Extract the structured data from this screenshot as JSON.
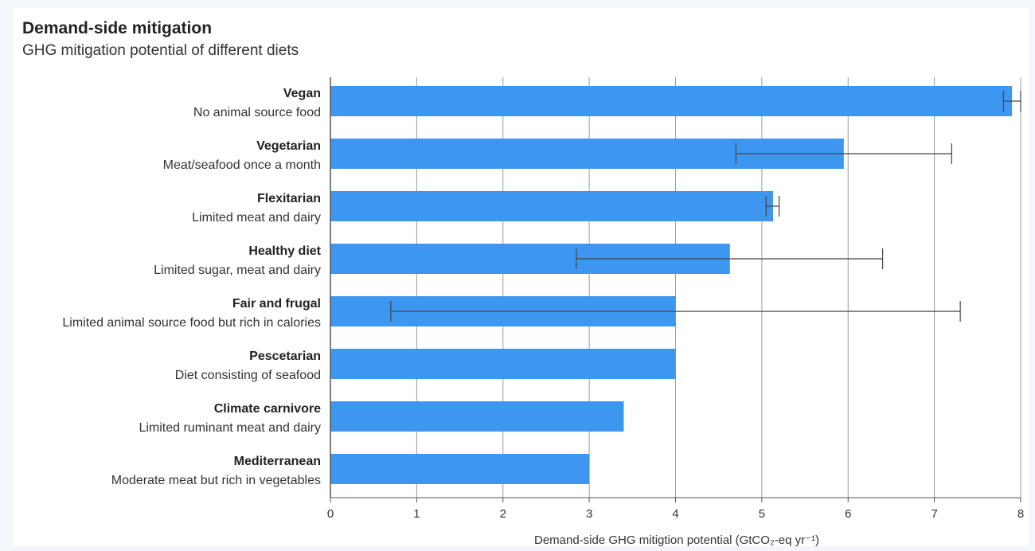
{
  "header": {
    "title": "Demand-side mitigation",
    "subtitle": "GHG mitigation potential of different diets"
  },
  "chart_data": {
    "type": "bar",
    "orientation": "horizontal",
    "title": "Demand-side mitigation",
    "subtitle": "GHG mitigation potential of different diets",
    "xlabel": "Demand-side GHG mitigtion potential (GtCO₂-eq yr⁻¹)",
    "ylabel": "",
    "xlim": [
      0,
      8
    ],
    "xticks": [
      0,
      1,
      2,
      3,
      4,
      5,
      6,
      7,
      8
    ],
    "grid": "vertical",
    "bar_color": "#3d97f0",
    "categories": [
      {
        "name": "Vegan",
        "description": "No animal source food",
        "value": 7.9,
        "error_low": 7.8,
        "error_high": 8.0
      },
      {
        "name": "Vegetarian",
        "description": "Meat/seafood once a month",
        "value": 5.95,
        "error_low": 4.7,
        "error_high": 7.2
      },
      {
        "name": "Flexitarian",
        "description": "Limited meat and dairy",
        "value": 5.13,
        "error_low": 5.05,
        "error_high": 5.2
      },
      {
        "name": "Healthy diet",
        "description": "Limited sugar, meat and dairy",
        "value": 4.63,
        "error_low": 2.85,
        "error_high": 6.4
      },
      {
        "name": "Fair and frugal",
        "description": "Limited animal source food but rich in calories",
        "value": 4.0,
        "error_low": 0.7,
        "error_high": 7.3
      },
      {
        "name": "Pescetarian",
        "description": "Diet consisting of seafood",
        "value": 4.0
      },
      {
        "name": "Climate carnivore",
        "description": "Limited ruminant meat and dairy",
        "value": 3.4
      },
      {
        "name": "Mediterranean",
        "description": "Moderate meat but rich in vegetables",
        "value": 3.0
      }
    ]
  }
}
